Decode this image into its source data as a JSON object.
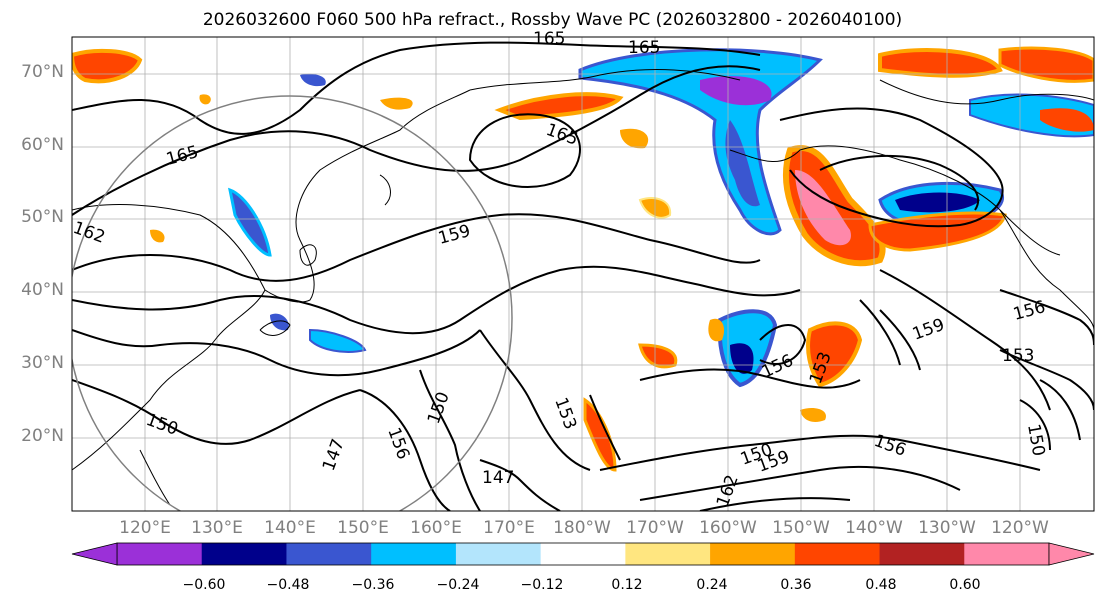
{
  "title": "2026032600 F060 500 hPa refract., Rossby Wave PC (2026032800 - 2026040100)",
  "lat_labels": [
    "70°N",
    "60°N",
    "50°N",
    "40°N",
    "30°N",
    "20°N"
  ],
  "lon_labels": [
    "120°E",
    "130°E",
    "140°E",
    "150°E",
    "160°E",
    "170°E",
    "180°W",
    "170°W",
    "160°W",
    "150°W",
    "140°W",
    "130°W",
    "120°W"
  ],
  "contour_labels": [
    "165",
    "165",
    "165",
    "165",
    "162",
    "159",
    "156",
    "156",
    "153",
    "153",
    "153",
    "150",
    "150",
    "150",
    "150",
    "147",
    "147",
    "156",
    "159",
    "156",
    "159",
    "162"
  ],
  "colorbar": {
    "ticks": [
      "−0.60",
      "−0.48",
      "−0.36",
      "−0.24",
      "−0.12",
      "0.12",
      "0.24",
      "0.36",
      "0.48",
      "0.60"
    ],
    "colors": [
      "#9b30d8",
      "#00008b",
      "#3a56d0",
      "#00bfff",
      "#b3e5fc",
      "#ffffff",
      "#ffe680",
      "#ffa500",
      "#ff4500",
      "#b22222",
      "#ff88aa"
    ]
  }
}
